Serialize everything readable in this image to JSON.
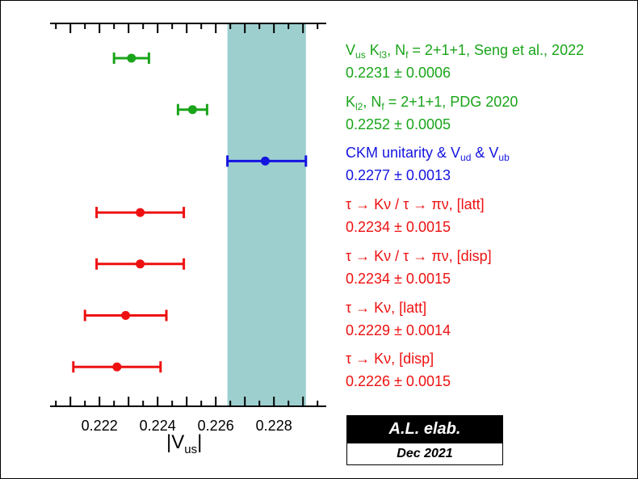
{
  "chart_data": {
    "type": "scatter",
    "xlim": [
      0.2203,
      0.2298
    ],
    "x_ticks": [
      "0.222",
      "0.224",
      "0.226",
      "0.228"
    ],
    "xlabel": {
      "main": "|V",
      "sub": "us",
      "end": "|"
    },
    "band": {
      "min": 0.2264,
      "max": 0.2291,
      "color": "#9ecfcf"
    },
    "measurements": [
      {
        "name_parts": [
          [
            "V",
            "us"
          ],
          [
            " K",
            "l3"
          ],
          [
            ", N",
            "f"
          ],
          [
            " = 2+1+1, Seng et al., 2022",
            ""
          ]
        ],
        "value_text": "0.2231 ± 0.0006",
        "central": 0.2231,
        "lo": 0.2225,
        "hi": 0.2237,
        "color": "#1aa51a"
      },
      {
        "name_parts": [
          [
            "K",
            "l2"
          ],
          [
            ", N",
            "f"
          ],
          [
            " = 2+1+1, PDG 2020",
            ""
          ]
        ],
        "value_text": "0.2252 ± 0.0005",
        "central": 0.2252,
        "lo": 0.2247,
        "hi": 0.2257,
        "color": "#1aa51a"
      },
      {
        "name_parts": [
          [
            "CKM unitarity & V",
            "ud"
          ],
          [
            " & V",
            "ub"
          ]
        ],
        "value_text": "0.2277 ± 0.0013",
        "central": 0.2277,
        "lo": 0.2264,
        "hi": 0.2291,
        "color": "#1515e0"
      },
      {
        "name_parts": [
          [
            "τ → Kν / τ → πν, [latt]",
            ""
          ]
        ],
        "value_text": "0.2234 ± 0.0015",
        "central": 0.2234,
        "lo": 0.2219,
        "hi": 0.2249,
        "color": "#ee1111"
      },
      {
        "name_parts": [
          [
            "τ → Kν / τ → πν, [disp]",
            ""
          ]
        ],
        "value_text": "0.2234 ± 0.0015",
        "central": 0.2234,
        "lo": 0.2219,
        "hi": 0.2249,
        "color": "#ee1111"
      },
      {
        "name_parts": [
          [
            "τ → Kν, [latt]",
            ""
          ]
        ],
        "value_text": "0.2229 ± 0.0014",
        "central": 0.2229,
        "lo": 0.2215,
        "hi": 0.2243,
        "color": "#ee1111"
      },
      {
        "name_parts": [
          [
            "τ → Kν, [disp]",
            ""
          ]
        ],
        "value_text": "0.2226 ± 0.0015",
        "central": 0.2226,
        "lo": 0.2211,
        "hi": 0.2241,
        "color": "#ee1111"
      }
    ]
  },
  "stamp": {
    "line1": "A.L. elab.",
    "line2": "Dec 2021"
  }
}
